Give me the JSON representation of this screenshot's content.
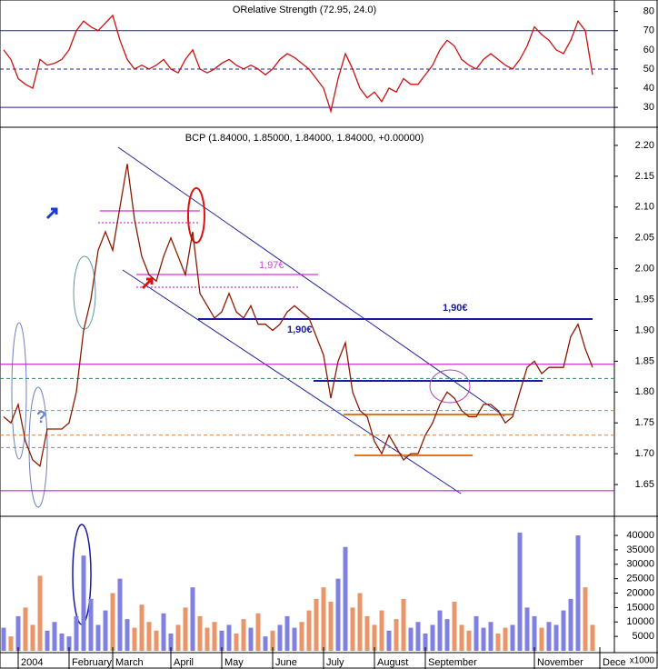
{
  "chart_data": [
    {
      "type": "line",
      "title": "ORelative Strength (72.95, 24.0)",
      "color": "#cc1111",
      "values": [
        60,
        55,
        45,
        42,
        40,
        55,
        52,
        53,
        55,
        60,
        70,
        75,
        72,
        70,
        74,
        78,
        65,
        55,
        50,
        52,
        50,
        52,
        55,
        50,
        48,
        55,
        60,
        50,
        48,
        50,
        53,
        55,
        52,
        50,
        52,
        50,
        47,
        50,
        55,
        58,
        56,
        53,
        50,
        45,
        40,
        28,
        45,
        58,
        50,
        40,
        35,
        38,
        33,
        40,
        38,
        45,
        42,
        42,
        47,
        52,
        60,
        65,
        62,
        55,
        52,
        50,
        55,
        58,
        55,
        52,
        50,
        55,
        62,
        72,
        68,
        65,
        60,
        58,
        65,
        75,
        70,
        47,
        null
      ],
      "ylim": [
        22,
        86
      ],
      "yticks": [
        30,
        40,
        50,
        60,
        70,
        80
      ],
      "levels": [
        {
          "value": 70,
          "color": "#2020a0",
          "dash": false
        },
        {
          "value": 50,
          "color": "#2020a0",
          "dash": true
        },
        {
          "value": 30,
          "color": "#2020a0",
          "dash": false
        }
      ]
    },
    {
      "type": "line",
      "title": "BCP (1.84000, 1.85000, 1.84000, 1.84000, +0.00000)",
      "color": "#8b1a00",
      "values": [
        1.76,
        1.75,
        1.78,
        1.72,
        1.69,
        1.68,
        1.74,
        1.74,
        1.74,
        1.75,
        1.8,
        1.9,
        1.95,
        2.03,
        2.06,
        2.03,
        2.1,
        2.17,
        2.08,
        2.02,
        1.99,
        1.98,
        2.02,
        2.05,
        2.02,
        1.99,
        2.06,
        1.96,
        1.94,
        1.92,
        1.93,
        1.96,
        1.93,
        1.92,
        1.94,
        1.91,
        1.91,
        1.9,
        1.91,
        1.93,
        1.94,
        1.93,
        1.92,
        1.89,
        1.86,
        1.79,
        1.85,
        1.88,
        1.8,
        1.77,
        1.76,
        1.72,
        1.7,
        1.73,
        1.71,
        1.69,
        1.7,
        1.7,
        1.73,
        1.75,
        1.78,
        1.8,
        1.79,
        1.77,
        1.76,
        1.76,
        1.78,
        1.78,
        1.77,
        1.75,
        1.76,
        1.8,
        1.84,
        1.85,
        1.83,
        1.84,
        1.84,
        1.84,
        1.89,
        1.91,
        1.87,
        1.84,
        null
      ],
      "ylim": [
        1.6,
        2.225
      ],
      "yticks": [
        {
          "value": 2.2,
          "label": "2.20"
        },
        {
          "value": 2.15,
          "label": "2.15"
        },
        {
          "value": 2.1,
          "label": "2.10"
        },
        {
          "value": 2.05,
          "label": "2.05"
        },
        {
          "value": 2.0,
          "label": "2.00"
        },
        {
          "value": 1.95,
          "label": "1.95"
        },
        {
          "value": 1.9,
          "label": "1.90"
        },
        {
          "value": 1.85,
          "label": "1.85"
        },
        {
          "value": 1.8,
          "label": "1.80"
        },
        {
          "value": 1.75,
          "label": "1.75"
        },
        {
          "value": 1.7,
          "label": "1.70"
        },
        {
          "value": 1.65,
          "label": "1.65"
        }
      ],
      "levels": [
        {
          "value": 1.845,
          "color": "#cc00cc",
          "dash": false
        },
        {
          "value": 1.822,
          "color": "#2a8a5a",
          "dash": true
        },
        {
          "value": 1.77,
          "color": "#d08040",
          "dash": true
        },
        {
          "value": 1.73,
          "color": "#d08040",
          "dash": true
        },
        {
          "value": 1.71,
          "color": "#888888",
          "dash": true
        },
        {
          "value": 1.64,
          "color": "#cc00cc",
          "dash": false
        }
      ],
      "annotations": [
        "1,97€",
        "1,90€",
        "1,90€",
        "?"
      ]
    },
    {
      "type": "bar",
      "up_color": "#8080e0",
      "down_color": "#e8956a",
      "unit_label": "x1000",
      "categories": [
        null,
        null,
        "2004",
        null,
        null,
        null,
        null,
        null,
        null,
        "February",
        null,
        null,
        null,
        null,
        null,
        "March",
        null,
        null,
        null,
        null,
        null,
        null,
        null,
        "April",
        null,
        null,
        null,
        null,
        null,
        null,
        "May",
        null,
        null,
        null,
        null,
        null,
        null,
        "June",
        null,
        null,
        null,
        null,
        null,
        null,
        "July",
        null,
        null,
        null,
        null,
        null,
        null,
        "August",
        null,
        null,
        null,
        null,
        null,
        null,
        "September",
        null,
        null,
        null,
        null,
        null,
        null,
        null,
        null,
        null,
        null,
        null,
        null,
        null,
        null,
        "November",
        null,
        null,
        null,
        null,
        null,
        null,
        null,
        null,
        "Dece"
      ],
      "values": [
        8000,
        5000,
        12000,
        15000,
        9000,
        26000,
        7000,
        10000,
        6000,
        5000,
        12000,
        33000,
        18000,
        9000,
        14000,
        20000,
        25000,
        11000,
        8000,
        16000,
        10000,
        7000,
        13000,
        6000,
        9000,
        15000,
        22000,
        12000,
        8000,
        10000,
        7000,
        9000,
        6000,
        11000,
        8000,
        13000,
        5000,
        7000,
        9000,
        12000,
        8000,
        10000,
        14000,
        18000,
        22000,
        17000,
        25000,
        36000,
        15000,
        20000,
        12000,
        9000,
        14000,
        7000,
        11000,
        18000,
        8000,
        10000,
        6000,
        9000,
        14000,
        11000,
        17000,
        9000,
        7000,
        12000,
        8000,
        10000,
        6000,
        8000,
        9000,
        41000,
        15000,
        12000,
        8000,
        10000,
        9000,
        14000,
        18000,
        40000,
        22000,
        9000,
        null
      ],
      "ylim": [
        0,
        46000
      ],
      "yticks": [
        5000,
        10000,
        15000,
        20000,
        25000,
        30000,
        35000,
        40000
      ]
    }
  ]
}
